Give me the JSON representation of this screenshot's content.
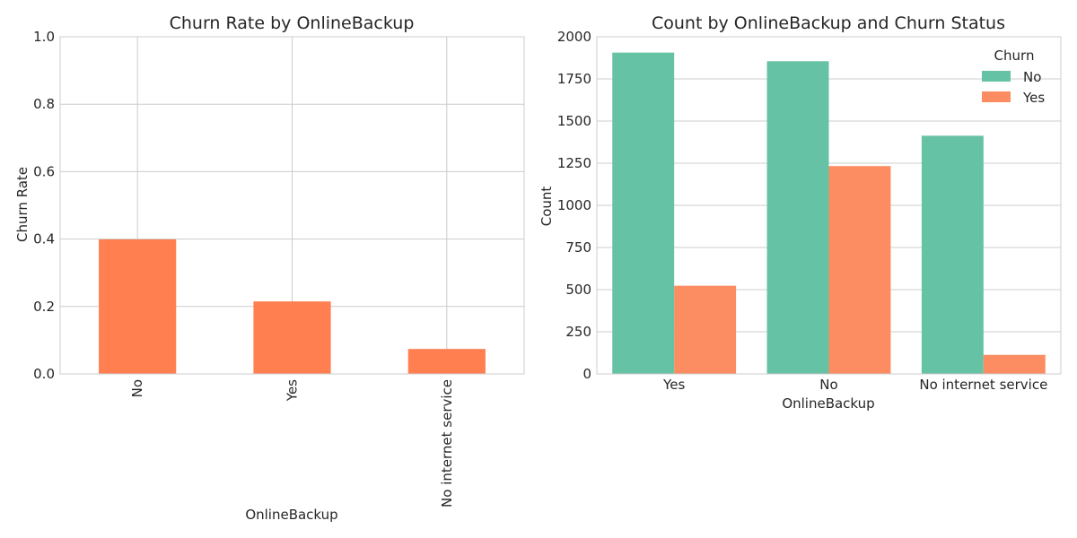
{
  "chart_data": [
    {
      "type": "bar",
      "title": "Churn Rate by OnlineBackup",
      "xlabel": "OnlineBackup",
      "ylabel": "Churn Rate",
      "categories": [
        "No",
        "Yes",
        "No internet service"
      ],
      "values": [
        0.399,
        0.215,
        0.074
      ],
      "ylim": [
        0,
        1.0
      ],
      "yticks": [
        "0.0",
        "0.2",
        "0.4",
        "0.6",
        "0.8",
        "1.0"
      ],
      "grid": true,
      "x_tick_rotation": "vertical",
      "color": "#ff7f50"
    },
    {
      "type": "bar",
      "title": "Count by OnlineBackup and Churn Status",
      "xlabel": "OnlineBackup",
      "ylabel": "Count",
      "categories": [
        "Yes",
        "No",
        "No internet service"
      ],
      "series": [
        {
          "name": "No",
          "values": [
            1906,
            1855,
            1413
          ],
          "color": "#66c2a5"
        },
        {
          "name": "Yes",
          "values": [
            523,
            1233,
            113
          ],
          "color": "#fc8d62"
        }
      ],
      "ylim": [
        0,
        2000
      ],
      "yticks": [
        "0",
        "250",
        "500",
        "750",
        "1000",
        "1250",
        "1500",
        "1750",
        "2000"
      ],
      "grid": true,
      "legend": {
        "title": "Churn",
        "placement": "top-right"
      }
    }
  ]
}
